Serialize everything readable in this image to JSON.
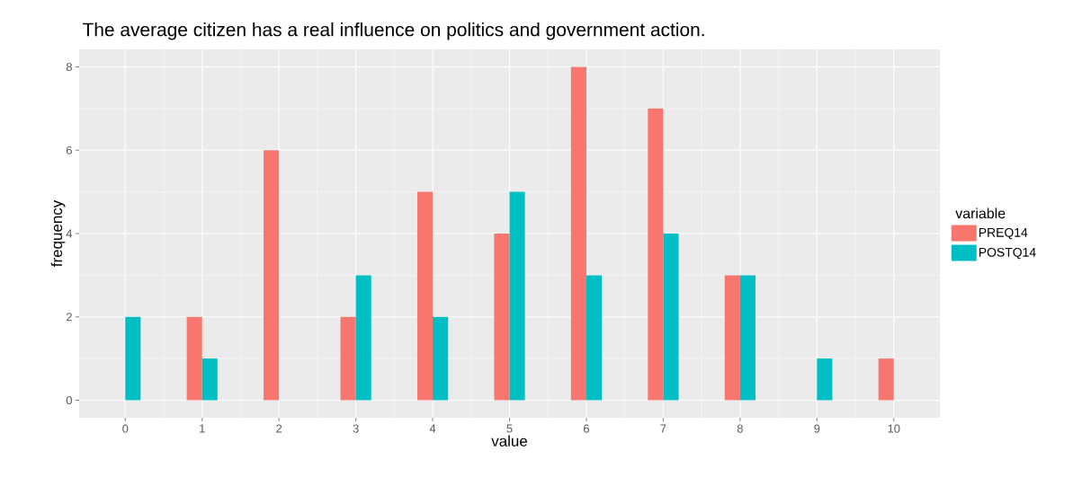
{
  "chart_data": {
    "type": "bar",
    "title": "The average citizen has a real influence on politics and government action.",
    "xlabel": "value",
    "ylabel": "frequency",
    "legend_title": "variable",
    "x": [
      0,
      1,
      2,
      3,
      4,
      5,
      6,
      7,
      8,
      9,
      10
    ],
    "series": [
      {
        "name": "PREQ14",
        "color": "#f8766d",
        "values": [
          null,
          2,
          6,
          2,
          5,
          4,
          8,
          7,
          3,
          null,
          1
        ]
      },
      {
        "name": "POSTQ14",
        "color": "#00bfc4",
        "values": [
          2,
          1,
          null,
          3,
          2,
          5,
          3,
          4,
          3,
          1,
          null
        ]
      }
    ],
    "xlim": [
      -0.6,
      10.6
    ],
    "xticks": [
      0,
      1,
      2,
      3,
      4,
      5,
      6,
      7,
      8,
      9,
      10
    ],
    "ylim": [
      -0.42,
      8.42
    ],
    "yticks": [
      0,
      2,
      4,
      6,
      8
    ],
    "grid": true,
    "legend": "right"
  }
}
